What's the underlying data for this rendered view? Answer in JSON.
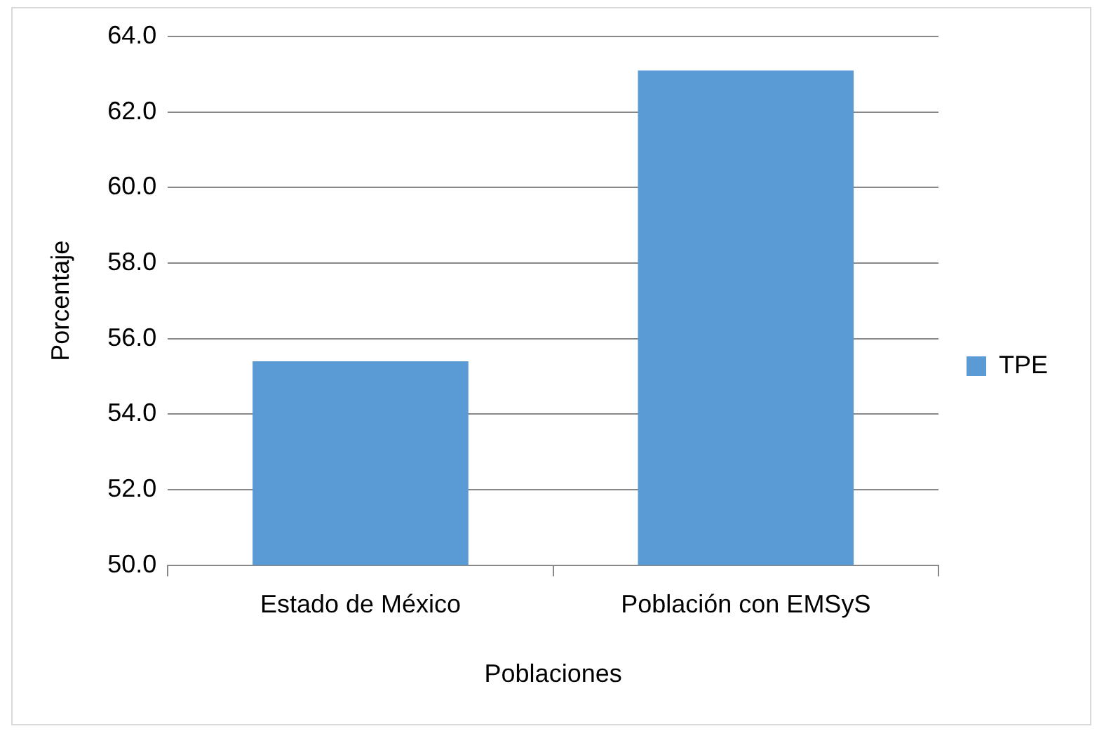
{
  "chart_data": {
    "type": "bar",
    "xlabel": "Poblaciones",
    "ylabel": "Porcentaje",
    "categories": [
      "Estado de México",
      "Población con EMSyS"
    ],
    "series": [
      {
        "name": "TPE",
        "color": "#5b9bd5",
        "values": [
          55.4,
          63.1
        ]
      }
    ],
    "ylim": [
      50,
      64
    ],
    "yticks": [
      {
        "value": 50,
        "label": "50.0"
      },
      {
        "value": 52,
        "label": "52.0"
      },
      {
        "value": 54,
        "label": "54.0"
      },
      {
        "value": 56,
        "label": "56.0"
      },
      {
        "value": 58,
        "label": "58.0"
      },
      {
        "value": 60,
        "label": "60.0"
      },
      {
        "value": 62,
        "label": "62.0"
      },
      {
        "value": 64,
        "label": "64.0"
      }
    ],
    "grid": "y",
    "legend": "right"
  }
}
